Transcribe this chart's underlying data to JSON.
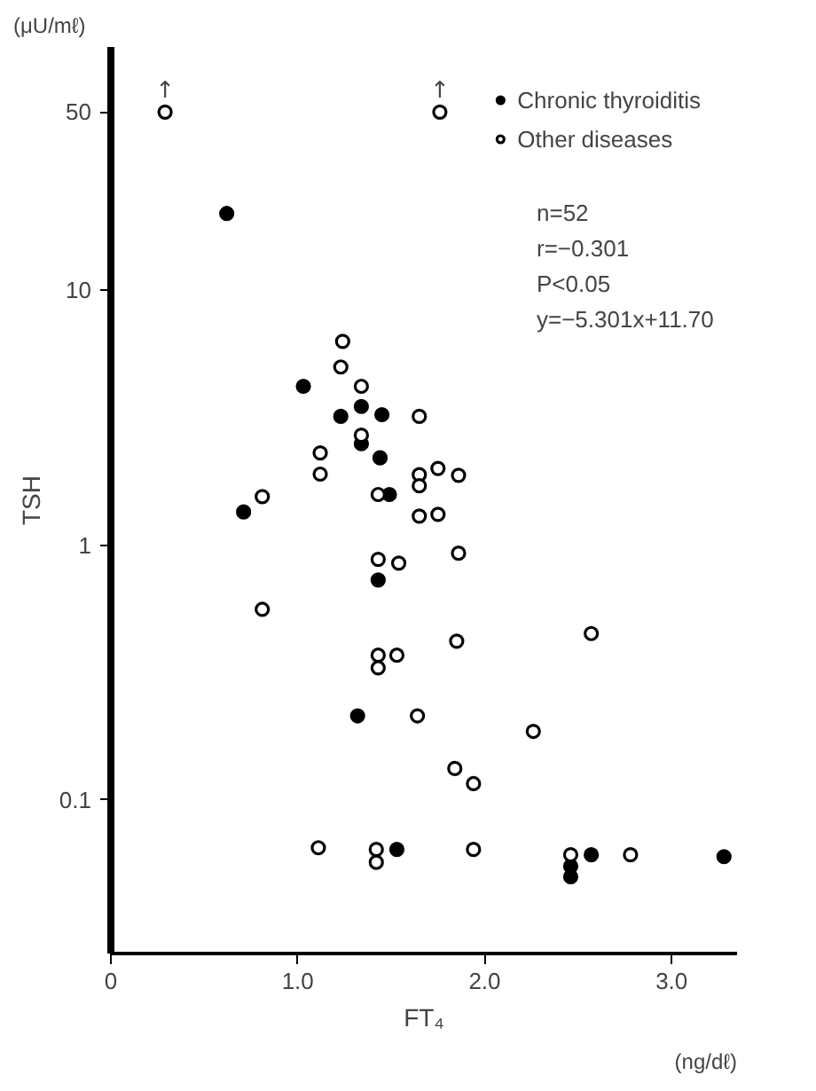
{
  "chart_data": {
    "type": "scatter",
    "xlabel": "FT₄",
    "ylabel": "TSH",
    "log": "y",
    "xlim": [
      0,
      3.35
    ],
    "ylim": [
      0.025,
      90
    ],
    "xticks": [
      0,
      {
        "value": 1,
        "label": "1.0"
      },
      {
        "value": 2,
        "label": "2.0"
      },
      {
        "value": 3,
        "label": "3.0"
      }
    ],
    "yticks": [
      0.1,
      1,
      10,
      50
    ],
    "grid": false,
    "legend": "top right",
    "marker": "circle",
    "annotations": [
      "(μU/mℓ)",
      "(ng/dℓ)",
      "n=52",
      "r=−0.301",
      "P<0.05",
      "y=−5.301x+11.70",
      {
        "text": "↑",
        "x": 0.29,
        "y": 50
      },
      {
        "text": "↑",
        "x": 1.76,
        "y": 50
      }
    ],
    "series": [
      {
        "name": "Chronic thyroiditis",
        "color": "#000000",
        "x": [
          0.62,
          1.03,
          1.34,
          1.23,
          1.45,
          1.34,
          1.44,
          1.49,
          0.71,
          1.43,
          1.32,
          1.53,
          2.57,
          2.46,
          2.46,
          3.28
        ],
        "values": [
          20,
          4.2,
          3.5,
          3.2,
          3.25,
          2.5,
          2.2,
          1.58,
          1.35,
          0.73,
          0.214,
          0.064,
          0.061,
          0.055,
          0.05,
          0.06
        ]
      },
      {
        "name": "Other diseases",
        "color": "#ffffff",
        "x": [
          0.29,
          1.76,
          1.24,
          1.23,
          1.34,
          1.65,
          1.34,
          1.12,
          1.12,
          1.65,
          1.75,
          1.86,
          1.65,
          1.43,
          0.81,
          1.65,
          1.75,
          1.86,
          1.43,
          1.54,
          0.81,
          1.85,
          2.57,
          1.43,
          1.43,
          1.53,
          1.64,
          2.26,
          1.84,
          1.94,
          1.11,
          1.42,
          1.42,
          1.94,
          2.46,
          2.78
        ],
        "values": [
          50,
          50,
          6.3,
          5.0,
          4.2,
          3.2,
          2.7,
          2.3,
          1.9,
          1.89,
          2.0,
          1.88,
          1.71,
          1.58,
          1.55,
          1.3,
          1.32,
          0.93,
          0.88,
          0.85,
          0.56,
          0.42,
          0.45,
          0.37,
          0.33,
          0.37,
          0.214,
          0.186,
          0.133,
          0.116,
          0.065,
          0.064,
          0.057,
          0.064,
          0.061,
          0.061
        ]
      }
    ]
  }
}
